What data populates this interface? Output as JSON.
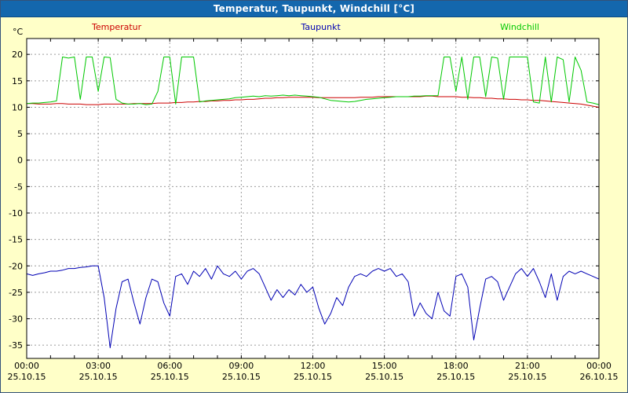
{
  "window": {
    "title": "Temperatur, Taupunkt, Windchill [°C]"
  },
  "colors": {
    "background": "#ffffc8",
    "titlebar": "#1467ad",
    "titlebar_text": "#ffffff",
    "plot_bg": "#ffffff",
    "grid": "#9c9c9c",
    "axis": "#000000",
    "tick_text": "#000000",
    "temperatur": "#cc0000",
    "taupunkt": "#0000b4",
    "windchill": "#00c800"
  },
  "chart_data": {
    "type": "line",
    "title": "Temperatur, Taupunkt, Windchill [°C]",
    "ylabel_unit": "°C",
    "xlabel": "",
    "xlim": [
      0,
      24
    ],
    "ylim": [
      -35,
      20
    ],
    "grid": true,
    "legend_position": "top",
    "legend": [
      {
        "label": "Temperatur",
        "color_key": "temperatur"
      },
      {
        "label": "Taupunkt",
        "color_key": "taupunkt"
      },
      {
        "label": "Windchill",
        "color_key": "windchill"
      }
    ],
    "y_ticks": [
      20,
      15,
      10,
      5,
      0,
      -5,
      -10,
      -15,
      -20,
      -25,
      -30,
      -35
    ],
    "x_ticks": [
      {
        "t": 0,
        "time": "00:00",
        "date": "25.10.15"
      },
      {
        "t": 3,
        "time": "03:00",
        "date": "25.10.15"
      },
      {
        "t": 6,
        "time": "06:00",
        "date": "25.10.15"
      },
      {
        "t": 9,
        "time": "09:00",
        "date": "25.10.15"
      },
      {
        "t": 12,
        "time": "12:00",
        "date": "25.10.15"
      },
      {
        "t": 15,
        "time": "15:00",
        "date": "25.10.15"
      },
      {
        "t": 18,
        "time": "18:00",
        "date": "25.10.15"
      },
      {
        "t": 21,
        "time": "21:00",
        "date": "25.10.15"
      },
      {
        "t": 24,
        "time": "00:00",
        "date": "26.10.15"
      }
    ],
    "x_hours": [
      0,
      0.25,
      0.5,
      0.75,
      1,
      1.25,
      1.5,
      1.75,
      2,
      2.25,
      2.5,
      2.75,
      3,
      3.25,
      3.5,
      3.75,
      4,
      4.25,
      4.5,
      4.75,
      5,
      5.25,
      5.5,
      5.75,
      6,
      6.25,
      6.5,
      6.75,
      7,
      7.25,
      7.5,
      7.75,
      8,
      8.25,
      8.5,
      8.75,
      9,
      9.25,
      9.5,
      9.75,
      10,
      10.25,
      10.5,
      10.75,
      11,
      11.25,
      11.5,
      11.75,
      12,
      12.25,
      12.5,
      12.75,
      13,
      13.25,
      13.5,
      13.75,
      14,
      14.25,
      14.5,
      14.75,
      15,
      15.25,
      15.5,
      15.75,
      16,
      16.25,
      16.5,
      16.75,
      17,
      17.25,
      17.5,
      17.75,
      18,
      18.25,
      18.5,
      18.75,
      19,
      19.25,
      19.5,
      19.75,
      20,
      20.25,
      20.5,
      20.75,
      21,
      21.25,
      21.5,
      21.75,
      22,
      22.25,
      22.5,
      22.75,
      23,
      23.25,
      23.5,
      23.75,
      24
    ],
    "series": [
      {
        "name": "Temperatur",
        "color_key": "temperatur",
        "values": [
          10.7,
          10.7,
          10.6,
          10.6,
          10.6,
          10.7,
          10.7,
          10.6,
          10.6,
          10.6,
          10.5,
          10.5,
          10.5,
          10.6,
          10.6,
          10.6,
          10.6,
          10.6,
          10.7,
          10.7,
          10.7,
          10.7,
          10.8,
          10.8,
          10.8,
          10.9,
          10.9,
          11.0,
          11.0,
          11.1,
          11.1,
          11.2,
          11.2,
          11.3,
          11.3,
          11.4,
          11.4,
          11.5,
          11.5,
          11.6,
          11.7,
          11.7,
          11.8,
          11.8,
          11.9,
          11.9,
          11.9,
          11.9,
          11.9,
          11.8,
          11.8,
          11.8,
          11.8,
          11.8,
          11.8,
          11.8,
          11.9,
          11.9,
          11.9,
          12.0,
          12.0,
          12.0,
          12.0,
          12.0,
          12.0,
          12.0,
          12.0,
          12.1,
          12.1,
          12.0,
          12.0,
          12.0,
          12.0,
          11.9,
          11.9,
          11.8,
          11.8,
          11.7,
          11.7,
          11.6,
          11.6,
          11.5,
          11.5,
          11.4,
          11.4,
          11.3,
          11.3,
          11.2,
          11.1,
          11.0,
          10.9,
          10.8,
          10.7,
          10.6,
          10.4,
          10.2,
          10.0
        ]
      },
      {
        "name": "Taupunkt",
        "color_key": "taupunkt",
        "values": [
          -21.5,
          -21.8,
          -21.5,
          -21.3,
          -21.0,
          -21.0,
          -20.8,
          -20.5,
          -20.5,
          -20.3,
          -20.2,
          -20.0,
          -20.0,
          -26.0,
          -35.5,
          -28.0,
          -23.0,
          -22.5,
          -27.0,
          -31.0,
          -26.0,
          -22.5,
          -23.0,
          -27.0,
          -29.5,
          -22.0,
          -21.5,
          -23.5,
          -21.0,
          -22.0,
          -20.5,
          -22.5,
          -20.0,
          -21.5,
          -22.0,
          -21.0,
          -22.5,
          -21.0,
          -20.5,
          -21.5,
          -24.0,
          -26.5,
          -24.5,
          -26.0,
          -24.5,
          -25.5,
          -23.5,
          -25.0,
          -24.0,
          -28.0,
          -31.0,
          -29.0,
          -26.0,
          -27.5,
          -24.0,
          -22.0,
          -21.5,
          -22.0,
          -21.0,
          -20.5,
          -21.0,
          -20.5,
          -22.0,
          -21.5,
          -23.0,
          -29.5,
          -27.0,
          -29.0,
          -30.0,
          -25.0,
          -28.5,
          -29.5,
          -22.0,
          -21.5,
          -24.0,
          -34.0,
          -28.0,
          -22.5,
          -22.0,
          -23.0,
          -26.5,
          -24.0,
          -21.5,
          -20.5,
          -22.0,
          -20.5,
          -23.0,
          -26.0,
          -21.5,
          -26.5,
          -22.0,
          -21.0,
          -21.5,
          -21.0,
          -21.5,
          -22.0,
          -22.5
        ]
      },
      {
        "name": "Windchill",
        "color_key": "windchill",
        "values": [
          10.7,
          10.8,
          10.8,
          10.9,
          11.0,
          11.2,
          19.5,
          19.3,
          19.5,
          11.5,
          19.5,
          19.5,
          13.0,
          19.5,
          19.4,
          11.5,
          10.8,
          10.6,
          10.6,
          10.7,
          10.5,
          10.6,
          13.0,
          19.5,
          19.5,
          10.6,
          19.5,
          19.5,
          19.5,
          11.0,
          11.2,
          11.3,
          11.4,
          11.5,
          11.6,
          11.8,
          11.9,
          12.0,
          12.1,
          12.0,
          12.2,
          12.1,
          12.2,
          12.3,
          12.2,
          12.3,
          12.2,
          12.1,
          12.0,
          11.9,
          11.6,
          11.3,
          11.2,
          11.1,
          11.0,
          11.1,
          11.3,
          11.5,
          11.6,
          11.7,
          11.8,
          11.9,
          12.0,
          12.0,
          12.0,
          12.1,
          12.1,
          12.2,
          12.2,
          12.2,
          19.5,
          19.5,
          13.0,
          19.5,
          11.5,
          19.5,
          19.5,
          12.0,
          19.5,
          19.3,
          11.5,
          19.5,
          19.5,
          19.5,
          19.5,
          11.0,
          10.8,
          19.5,
          11.0,
          19.5,
          19.0,
          11.0,
          19.5,
          17.0,
          11.0,
          10.8,
          10.5
        ]
      }
    ]
  }
}
